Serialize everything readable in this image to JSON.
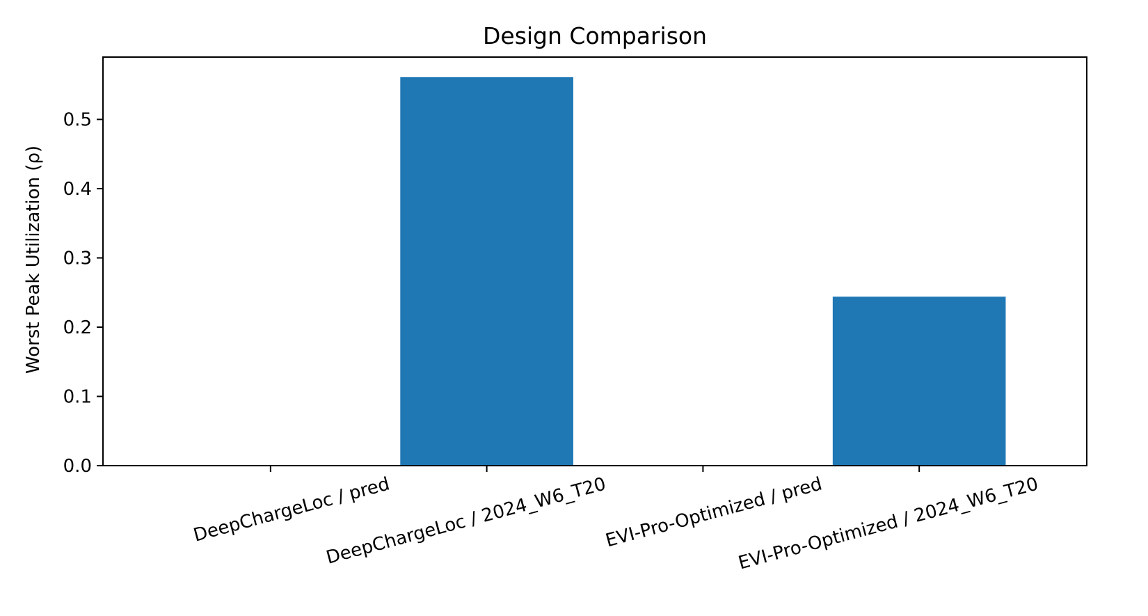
{
  "chart_data": {
    "type": "bar",
    "title": "Design Comparison",
    "xlabel": "",
    "ylabel": "Worst Peak Utilization (ρ)",
    "categories": [
      "DeepChargeLoc / pred",
      "DeepChargeLoc / 2024_W6_T20",
      "EVI-Pro-Optimized / pred",
      "EVI-Pro-Optimized / 2024_W6_T20"
    ],
    "values": [
      0.0,
      0.561,
      0.0,
      0.244
    ],
    "ylim": [
      0,
      0.59
    ],
    "yticks": [
      {
        "value": 0.0,
        "label": "0.0"
      },
      {
        "value": 0.1,
        "label": "0.1"
      },
      {
        "value": 0.2,
        "label": "0.2"
      },
      {
        "value": 0.3,
        "label": "0.3"
      },
      {
        "value": 0.4,
        "label": "0.4"
      },
      {
        "value": 0.5,
        "label": "0.5"
      }
    ],
    "bar_color": "#1f77b4",
    "grid": false,
    "legend": "none"
  }
}
